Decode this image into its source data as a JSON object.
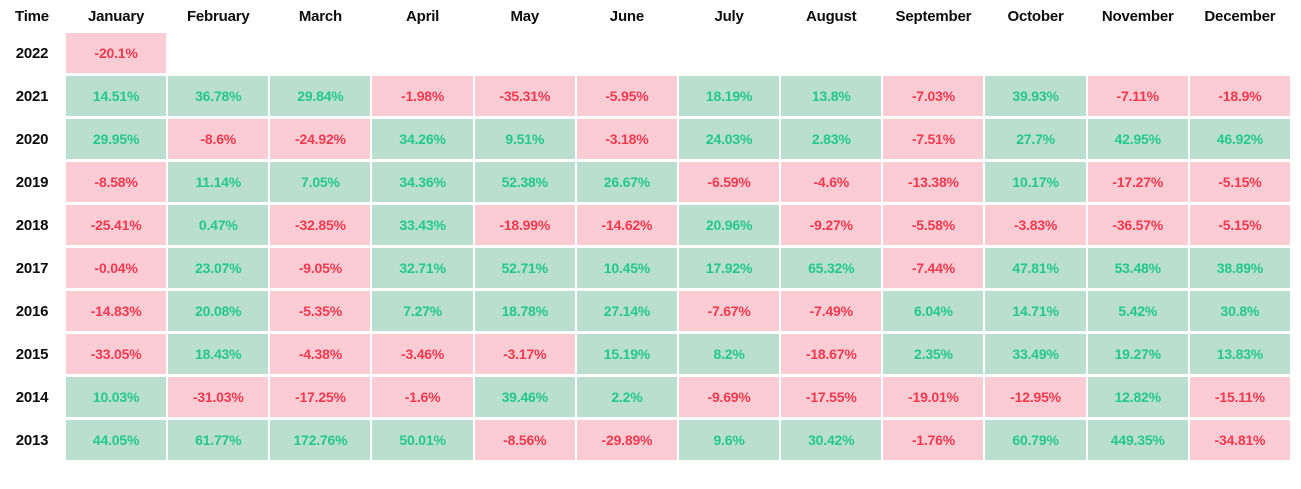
{
  "chart_data": {
    "type": "heatmap",
    "description": "Monthly returns by year heatmap table",
    "time_label": "Time",
    "unit": "%",
    "months": [
      "January",
      "February",
      "March",
      "April",
      "May",
      "June",
      "July",
      "August",
      "September",
      "October",
      "November",
      "December"
    ],
    "rows": [
      {
        "year": "2022",
        "values": [
          -20.1,
          null,
          null,
          null,
          null,
          null,
          null,
          null,
          null,
          null,
          null,
          null
        ]
      },
      {
        "year": "2021",
        "values": [
          14.51,
          36.78,
          29.84,
          -1.98,
          -35.31,
          -5.95,
          18.19,
          13.8,
          -7.03,
          39.93,
          -7.11,
          -18.9
        ]
      },
      {
        "year": "2020",
        "values": [
          29.95,
          -8.6,
          -24.92,
          34.26,
          9.51,
          -3.18,
          24.03,
          2.83,
          -7.51,
          27.7,
          42.95,
          46.92
        ]
      },
      {
        "year": "2019",
        "values": [
          -8.58,
          11.14,
          7.05,
          34.36,
          52.38,
          26.67,
          -6.59,
          -4.6,
          -13.38,
          10.17,
          -17.27,
          -5.15
        ]
      },
      {
        "year": "2018",
        "values": [
          -25.41,
          0.47,
          -32.85,
          33.43,
          -18.99,
          -14.62,
          20.96,
          -9.27,
          -5.58,
          -3.83,
          -36.57,
          -5.15
        ]
      },
      {
        "year": "2017",
        "values": [
          -0.04,
          23.07,
          -9.05,
          32.71,
          52.71,
          10.45,
          17.92,
          65.32,
          -7.44,
          47.81,
          53.48,
          38.89
        ]
      },
      {
        "year": "2016",
        "values": [
          -14.83,
          20.08,
          -5.35,
          7.27,
          18.78,
          27.14,
          -7.67,
          -7.49,
          6.04,
          14.71,
          5.42,
          30.8
        ]
      },
      {
        "year": "2015",
        "values": [
          -33.05,
          18.43,
          -4.38,
          -3.46,
          -3.17,
          15.19,
          8.2,
          -18.67,
          2.35,
          33.49,
          19.27,
          13.83
        ]
      },
      {
        "year": "2014",
        "values": [
          10.03,
          -31.03,
          -17.25,
          -1.6,
          39.46,
          2.2,
          -9.69,
          -17.55,
          -19.01,
          -12.95,
          12.82,
          -15.11
        ]
      },
      {
        "year": "2013",
        "values": [
          44.05,
          61.77,
          172.76,
          50.01,
          -8.56,
          -29.89,
          9.6,
          30.42,
          -1.76,
          60.79,
          449.35,
          -34.81
        ]
      }
    ],
    "colors": {
      "positive_bg": "#badfd0",
      "positive_text": "#24c78c",
      "negative_bg": "#fbccd3",
      "negative_text": "#f23950",
      "header_text": "#0d0d0d"
    },
    "layout": {
      "legend": "none",
      "grid": "off",
      "value_align": "center"
    }
  }
}
